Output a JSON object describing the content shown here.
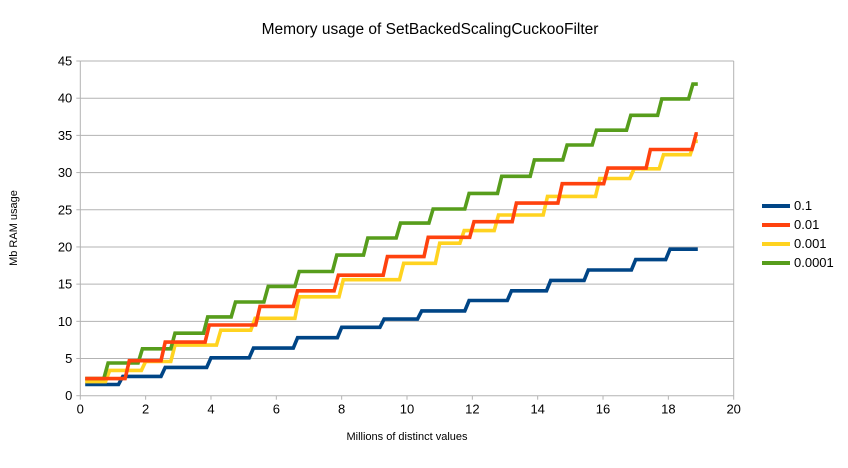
{
  "chart_data": {
    "type": "line",
    "subtype": "step-after",
    "title": "Memory usage of SetBackedScalingCuckooFilter",
    "xlabel": "Millions of distinct values",
    "ylabel": "Mb RAM usage",
    "xlim": [
      0,
      20
    ],
    "ylim": [
      0,
      45
    ],
    "x_ticks": [
      0,
      2,
      4,
      6,
      8,
      10,
      12,
      14,
      16,
      18,
      20
    ],
    "y_ticks": [
      0,
      5,
      10,
      15,
      20,
      25,
      30,
      35,
      40,
      45
    ],
    "grid": "horizontal",
    "legend_position": "right",
    "x_start": 0.15,
    "x_end": 18.9,
    "series": [
      {
        "name": "0.1",
        "color": "#004586",
        "points": [
          [
            0.15,
            1.5
          ],
          [
            1.3,
            2.6
          ],
          [
            2.6,
            3.8
          ],
          [
            4.0,
            5.1
          ],
          [
            5.3,
            6.4
          ],
          [
            6.65,
            7.8
          ],
          [
            8.0,
            9.2
          ],
          [
            9.3,
            10.3
          ],
          [
            10.45,
            11.4
          ],
          [
            11.9,
            12.8
          ],
          [
            13.2,
            14.1
          ],
          [
            14.4,
            15.5
          ],
          [
            15.55,
            16.9
          ],
          [
            17.0,
            18.3
          ],
          [
            18.05,
            19.7
          ]
        ]
      },
      {
        "name": "0.01",
        "color": "#ff420e",
        "points": [
          [
            0.15,
            2.3
          ],
          [
            1.5,
            4.7
          ],
          [
            2.6,
            7.2
          ],
          [
            3.95,
            9.5
          ],
          [
            5.5,
            12.0
          ],
          [
            6.65,
            14.1
          ],
          [
            7.9,
            16.2
          ],
          [
            9.4,
            18.7
          ],
          [
            10.65,
            21.3
          ],
          [
            12.05,
            23.4
          ],
          [
            13.35,
            25.9
          ],
          [
            14.75,
            28.5
          ],
          [
            16.15,
            30.6
          ],
          [
            17.45,
            33.1
          ],
          [
            18.85,
            35.2
          ]
        ]
      },
      {
        "name": "0.001",
        "color": "#ffd320",
        "points": [
          [
            0.15,
            1.9
          ],
          [
            0.9,
            3.4
          ],
          [
            2.0,
            4.6
          ],
          [
            2.9,
            6.8
          ],
          [
            4.3,
            8.8
          ],
          [
            5.35,
            10.4
          ],
          [
            6.7,
            13.3
          ],
          [
            8.05,
            15.6
          ],
          [
            9.9,
            17.8
          ],
          [
            11.0,
            20.5
          ],
          [
            11.75,
            22.2
          ],
          [
            12.8,
            24.3
          ],
          [
            14.3,
            26.8
          ],
          [
            15.9,
            29.2
          ],
          [
            16.95,
            30.5
          ],
          [
            17.85,
            32.4
          ],
          [
            18.8,
            34.2
          ]
        ]
      },
      {
        "name": "0.0001",
        "color": "#579d1c",
        "points": [
          [
            0.15,
            2.3
          ],
          [
            0.85,
            4.4
          ],
          [
            1.9,
            6.3
          ],
          [
            2.9,
            8.4
          ],
          [
            3.9,
            10.6
          ],
          [
            4.75,
            12.6
          ],
          [
            5.75,
            14.7
          ],
          [
            6.7,
            16.7
          ],
          [
            7.85,
            18.9
          ],
          [
            8.8,
            21.2
          ],
          [
            9.8,
            23.2
          ],
          [
            10.8,
            25.1
          ],
          [
            11.9,
            27.2
          ],
          [
            12.9,
            29.5
          ],
          [
            13.9,
            31.7
          ],
          [
            14.9,
            33.7
          ],
          [
            15.8,
            35.7
          ],
          [
            16.85,
            37.7
          ],
          [
            17.8,
            39.9
          ],
          [
            18.75,
            41.9
          ]
        ]
      }
    ],
    "colors": {
      "gridline": "#b3b3b3",
      "axis": "#b3b3b3",
      "text": "#000000",
      "background": "#ffffff"
    }
  }
}
